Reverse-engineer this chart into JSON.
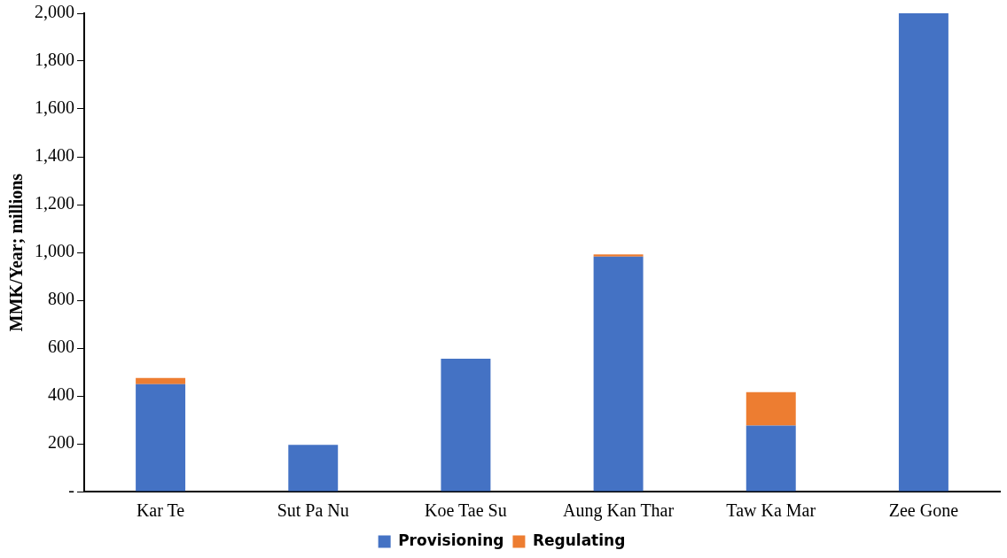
{
  "chart_data": {
    "type": "bar",
    "stacked": true,
    "ylabel": "MMK/Year; millions",
    "categories": [
      "Kar Te",
      "Sut Pa Nu",
      "Koe Tae Su",
      "Aung Kan Thar",
      "Taw Ka Mar",
      "Zee Gone"
    ],
    "series": [
      {
        "name": "Provisioning",
        "color": "#4472c4",
        "values": [
          449,
          195,
          556,
          982,
          276,
          2000
        ]
      },
      {
        "name": "Regulating",
        "color": "#ed7d31",
        "values": [
          26,
          0,
          0,
          10,
          140,
          0
        ]
      }
    ],
    "ylim": [
      0,
      2000
    ],
    "yticks": [
      {
        "value": 0,
        "label": "-"
      },
      {
        "value": 200,
        "label": "200"
      },
      {
        "value": 400,
        "label": "400"
      },
      {
        "value": 600,
        "label": "600"
      },
      {
        "value": 800,
        "label": "800"
      },
      {
        "value": 1000,
        "label": "1,000"
      },
      {
        "value": 1200,
        "label": "1,200"
      },
      {
        "value": 1400,
        "label": "1,400"
      },
      {
        "value": 1600,
        "label": "1,600"
      },
      {
        "value": 1800,
        "label": "1,800"
      },
      {
        "value": 2000,
        "label": "2,000"
      }
    ],
    "grid": false,
    "legend": "bottom"
  }
}
